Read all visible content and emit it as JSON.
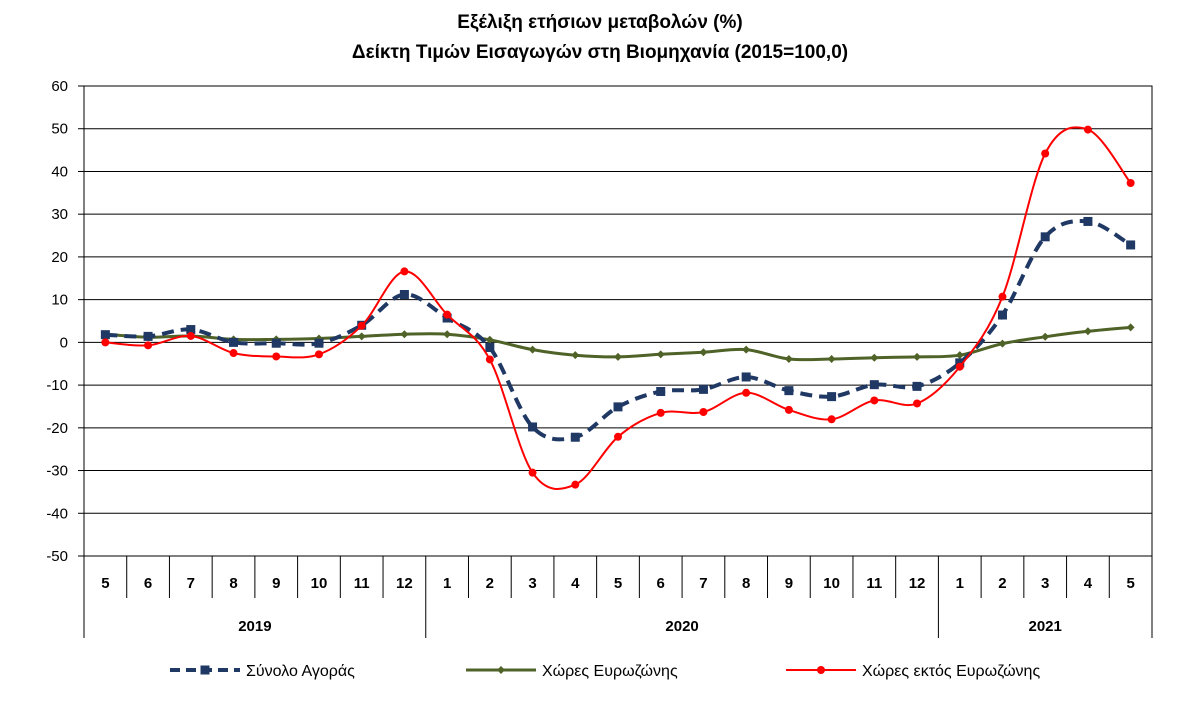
{
  "chart_data": {
    "type": "line",
    "title": "Εξέλιξη ετήσιων μεταβολών (%)",
    "subtitle": "Δείκτη Τιμών Εισαγωγών στη Βιομηχανία (2015=100,0)",
    "xlabel": "",
    "ylabel": "",
    "ylim": [
      -50,
      60
    ],
    "yticks": [
      60,
      50,
      40,
      30,
      20,
      10,
      0,
      -10,
      -20,
      -30,
      -40,
      -50
    ],
    "grid": true,
    "legend_position": "bottom",
    "categories": [
      "5",
      "6",
      "7",
      "8",
      "9",
      "10",
      "11",
      "12",
      "1",
      "2",
      "3",
      "4",
      "5",
      "6",
      "7",
      "8",
      "9",
      "10",
      "11",
      "12",
      "1",
      "2",
      "3",
      "4",
      "5"
    ],
    "year_groups": [
      {
        "label": "2019",
        "start": 0,
        "end": 7
      },
      {
        "label": "2020",
        "start": 8,
        "end": 19
      },
      {
        "label": "2021",
        "start": 20,
        "end": 24
      }
    ],
    "series": [
      {
        "name": "Σύνολο Αγοράς",
        "color": "#1f3864",
        "style": "dashed-square",
        "values": [
          1.8,
          1.4,
          3.0,
          0.0,
          -0.2,
          -0.2,
          4.0,
          11.2,
          5.7,
          -1.2,
          -19.8,
          -22.2,
          -15.1,
          -11.5,
          -11.0,
          -8.1,
          -11.3,
          -12.7,
          -9.9,
          -10.3,
          -4.8,
          6.4,
          24.7,
          28.3,
          22.8
        ]
      },
      {
        "name": "Χώρες Ευρωζώνης",
        "color": "#4f6228",
        "style": "solid-diamond",
        "values": [
          1.9,
          1.2,
          1.5,
          0.7,
          0.7,
          0.9,
          1.4,
          1.9,
          1.9,
          0.6,
          -1.7,
          -3.0,
          -3.4,
          -2.8,
          -2.3,
          -1.7,
          -3.9,
          -3.9,
          -3.6,
          -3.4,
          -3.0,
          -0.3,
          1.3,
          2.6,
          3.5
        ]
      },
      {
        "name": "Χώρες εκτός Ευρωζώνης",
        "color": "#ff0000",
        "style": "solid-circle",
        "values": [
          0.0,
          -0.7,
          1.5,
          -2.5,
          -3.3,
          -2.8,
          3.9,
          16.6,
          6.5,
          -4.0,
          -30.5,
          -33.3,
          -22.1,
          -16.5,
          -16.3,
          -11.8,
          -15.8,
          -18.0,
          -13.6,
          -14.3,
          -5.7,
          10.7,
          44.2,
          49.8,
          37.3
        ]
      }
    ]
  }
}
